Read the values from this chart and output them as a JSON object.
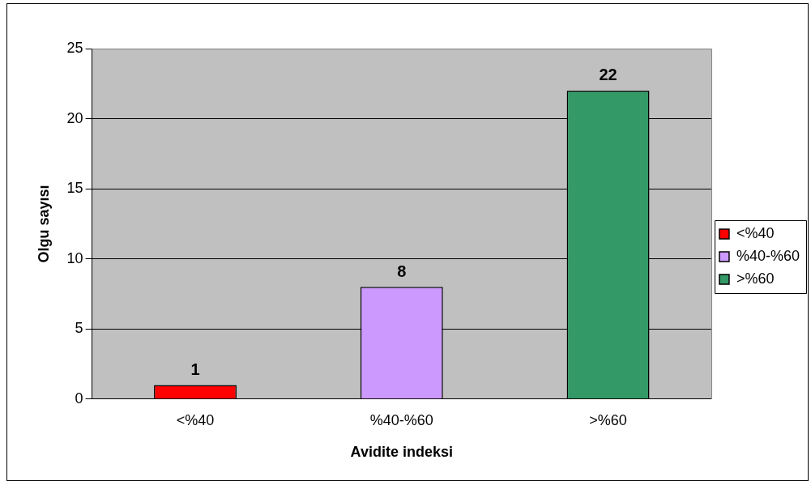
{
  "chart_data": {
    "type": "bar",
    "xlabel": "Avidite indeksi",
    "ylabel": "Olgu sayısı",
    "categories": [
      "<%40",
      "%40-%60",
      ">%60"
    ],
    "series": [
      {
        "name": "<%40",
        "color": "#ff0000",
        "values": [
          1,
          null,
          null
        ]
      },
      {
        "name": "%40-%60",
        "color": "#cc99ff",
        "values": [
          null,
          8,
          null
        ]
      },
      {
        "name": ">%60",
        "color": "#339966",
        "values": [
          null,
          null,
          22
        ]
      }
    ],
    "ylim": [
      0,
      25
    ],
    "yticks": [
      0,
      5,
      10,
      15,
      20,
      25
    ],
    "grid": "y",
    "legend": "right",
    "data_labels": true
  }
}
